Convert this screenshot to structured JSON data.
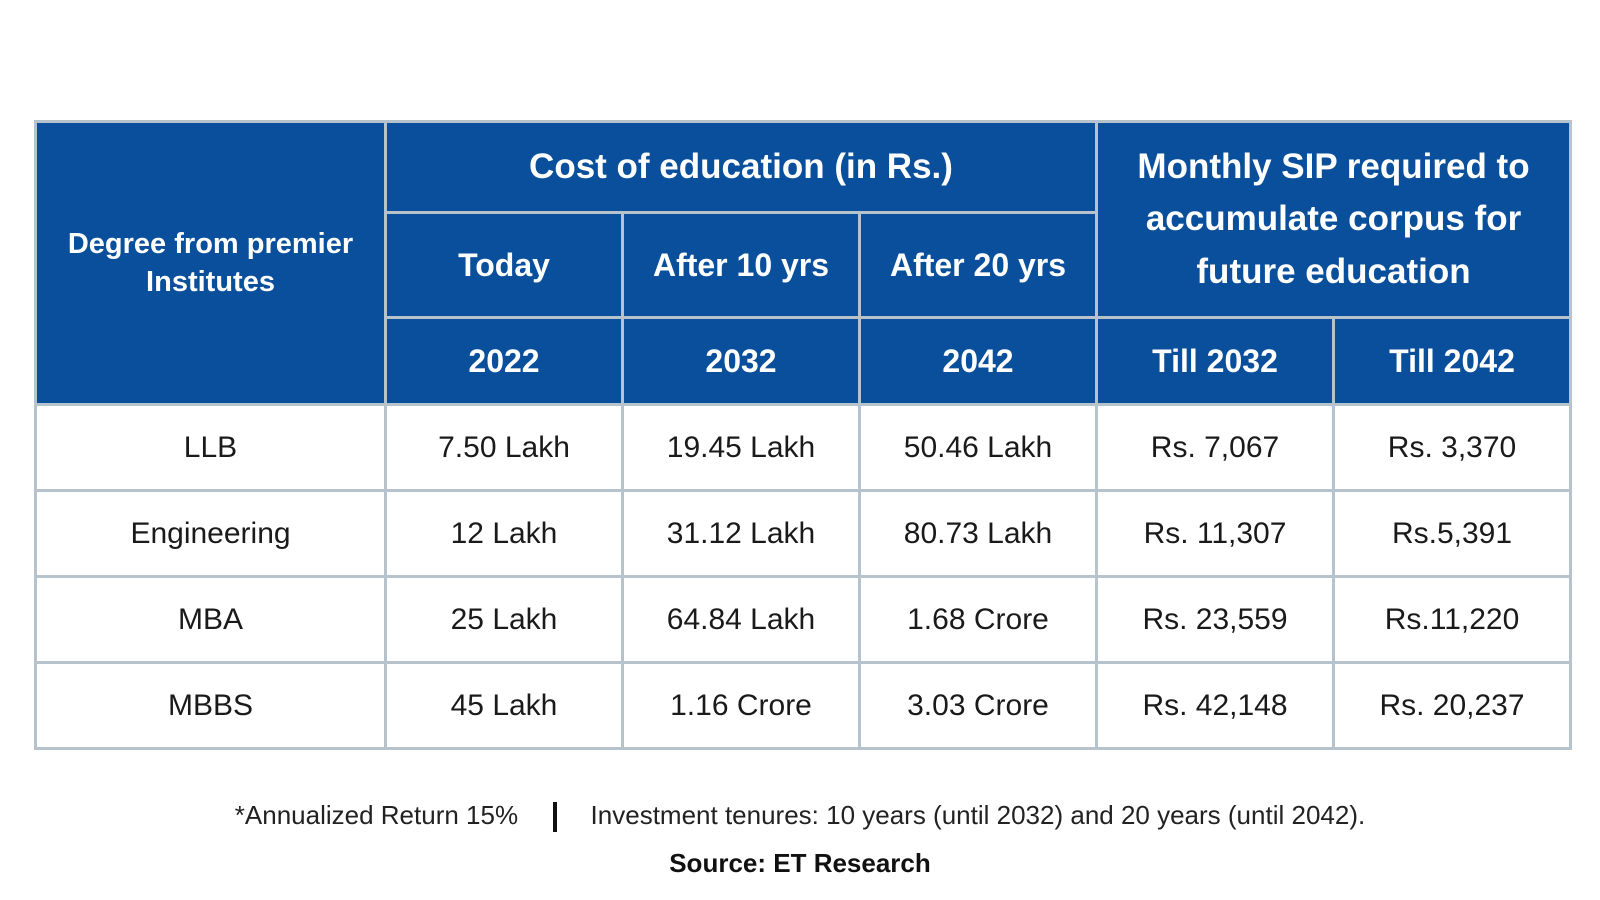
{
  "header": {
    "degree": "Degree from premier Institutes",
    "cost_title": "Cost of education (in Rs.)",
    "sip_title": "Monthly SIP required to accumulate corpus for future education",
    "periods": [
      "Today",
      "After 10 yrs",
      "After 20 yrs"
    ],
    "years": [
      "2022",
      "2032",
      "2042"
    ],
    "sip_years": [
      "Till 2032",
      "Till 2042"
    ]
  },
  "rows": [
    {
      "degree": "LLB",
      "today": "7.50 Lakh",
      "after10": "19.45 Lakh",
      "after20": "50.46 Lakh",
      "sip2032": "Rs. 7,067",
      "sip2042": "Rs. 3,370"
    },
    {
      "degree": "Engineering",
      "today": "12 Lakh",
      "after10": "31.12 Lakh",
      "after20": "80.73 Lakh",
      "sip2032": "Rs. 11,307",
      "sip2042": "Rs.5,391"
    },
    {
      "degree": "MBA",
      "today": "25 Lakh",
      "after10": "64.84 Lakh",
      "after20": "1.68 Crore",
      "sip2032": "Rs. 23,559",
      "sip2042": "Rs.11,220"
    },
    {
      "degree": "MBBS",
      "today": "45 Lakh",
      "after10": "1.16 Crore",
      "after20": "3.03 Crore",
      "sip2032": "Rs. 42,148",
      "sip2042": "Rs. 20,237"
    }
  ],
  "notes": {
    "return": "*Annualized Return 15%",
    "tenure": "Investment tenures: 10 years (until 2032) and 20 years (until 2042).",
    "source": "Source: ET Research"
  },
  "colors": {
    "header_bg": "#0a4f9c",
    "border": "#b6c3cd"
  }
}
